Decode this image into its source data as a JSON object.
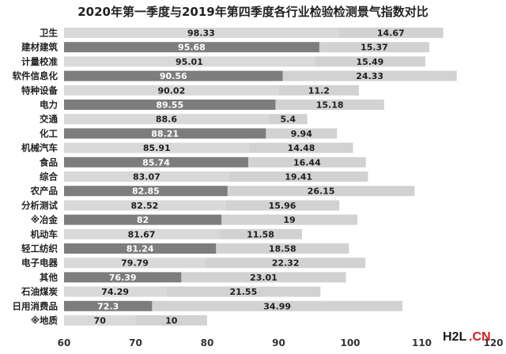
{
  "chart_data": {
    "type": "bar",
    "title": "2020年第一季度与2019年第四季度各行业检验检测景气指数对比",
    "xlim": [
      60,
      120
    ],
    "xticks": [
      "60",
      "70",
      "80",
      "90",
      "100",
      "110",
      "120"
    ],
    "grid": false,
    "categories": [
      "卫生",
      "建材建筑",
      "计量校准",
      "软件信息化",
      "特种设备",
      "电力",
      "交通",
      "化工",
      "机械汽车",
      "食品",
      "综合",
      "农产品",
      "分析测试",
      "※冶金",
      "机动车",
      "轻工纺织",
      "电子电器",
      "其他",
      "石油煤炭",
      "日用消费品",
      "※地质"
    ],
    "series": [
      {
        "values": [
          98.33,
          95.68,
          95.01,
          90.56,
          90.02,
          89.55,
          88.6,
          88.21,
          85.91,
          85.74,
          83.07,
          82.85,
          82.52,
          82,
          81.67,
          81.24,
          79.79,
          76.39,
          74.29,
          72.3,
          70
        ]
      },
      {
        "values": [
          14.67,
          15.37,
          15.49,
          24.33,
          11.2,
          15.18,
          5.4,
          9.94,
          14.48,
          16.44,
          19.41,
          26.15,
          15.96,
          19,
          11.58,
          18.58,
          22.32,
          23.01,
          21.55,
          34.99,
          10
        ]
      }
    ],
    "value_labels_1": [
      "98.33",
      "95.68",
      "95.01",
      "90.56",
      "90.02",
      "89.55",
      "88.6",
      "88.21",
      "85.91",
      "85.74",
      "83.07",
      "82.85",
      "82.52",
      "82",
      "81.67",
      "81.24",
      "79.79",
      "76.39",
      "74.29",
      "72.3",
      "70"
    ],
    "value_labels_2": [
      "14.67",
      "15.37",
      "15.49",
      "24.33",
      "11.2",
      "15.18",
      "5.4",
      "9.94",
      "14.48",
      "16.44",
      "19.41",
      "26.15",
      "15.96",
      "19",
      "11.58",
      "18.58",
      "22.32",
      "23.01",
      "21.55",
      "34.99",
      "10"
    ],
    "shading": [
      "light",
      "dark",
      "light",
      "dark",
      "light",
      "dark",
      "light",
      "dark",
      "light",
      "dark",
      "light",
      "dark",
      "light",
      "dark",
      "light",
      "dark",
      "light",
      "dark",
      "light",
      "dark",
      "light"
    ],
    "colors": {
      "dark": "#7d7d7d",
      "light": "#d9d9d9",
      "second": "#d2d2d2",
      "text_light": "#ffffff",
      "text_dark": "#1e1e1e"
    }
  },
  "watermark": {
    "part1": "H2L",
    "part2": ".CN"
  }
}
